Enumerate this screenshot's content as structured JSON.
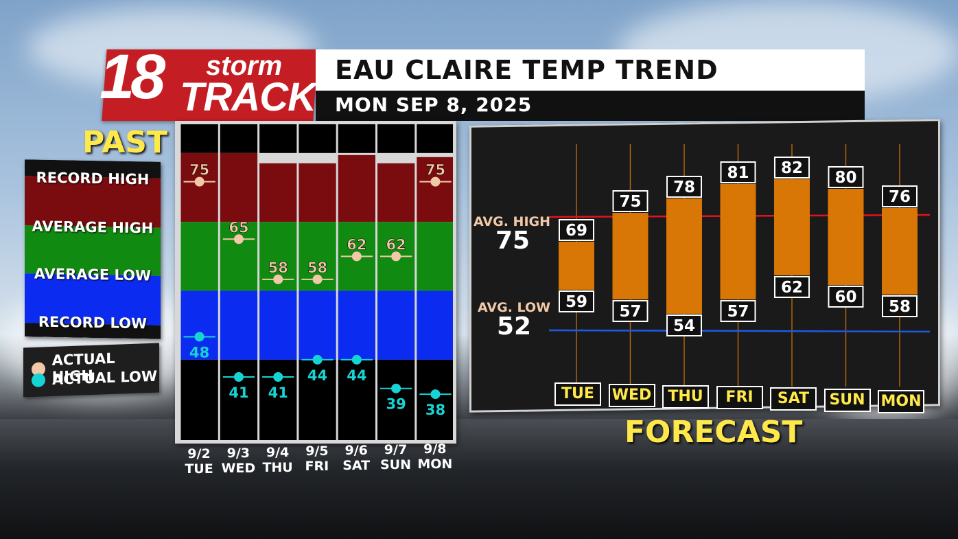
{
  "header": {
    "logo_number": "18",
    "logo_word1": "storm",
    "logo_word2": "TRACK",
    "title": "EAU CLAIRE TEMP TREND",
    "subtitle": "MON SEP 8, 2025"
  },
  "past": {
    "label": "PAST",
    "legend": {
      "record_high": "RECORD HIGH",
      "average_high": "AVERAGE HIGH",
      "average_low": "AVERAGE LOW",
      "record_low": "RECORD LOW",
      "actual_high": "ACTUAL HIGH",
      "actual_low": "ACTUAL LOW"
    },
    "colors": {
      "record_band": "#7a0c10",
      "normal_band": "#118a11",
      "low_band": "#0b2cf0",
      "empty": "#000000",
      "actual_high_dot": "#f2c9a8",
      "actual_low_dot": "#17d4d4"
    }
  },
  "forecast": {
    "label": "FORECAST",
    "avg_high_label": "AVG. HIGH",
    "avg_high_value": "75",
    "avg_low_label": "AVG. LOW",
    "avg_low_value": "52",
    "colors": {
      "bar": "#d97706",
      "avg_high_line": "#e0141e",
      "avg_low_line": "#1e5ae6"
    }
  },
  "chart_data": [
    {
      "type": "bar",
      "title": "PAST",
      "categories": [
        "9/2 TUE",
        "9/3 WED",
        "9/4 THU",
        "9/5 FRI",
        "9/6 SAT",
        "9/7 SUN",
        "9/8 MON"
      ],
      "date_labels": [
        "9/2",
        "9/3",
        "9/4",
        "9/5",
        "9/6",
        "9/7",
        "9/8"
      ],
      "day_labels": [
        "TUE",
        "WED",
        "THU",
        "FRI",
        "SAT",
        "SUN",
        "MON"
      ],
      "series": [
        {
          "name": "ACTUAL HIGH",
          "values": [
            75,
            65,
            58,
            58,
            62,
            62,
            75
          ]
        },
        {
          "name": "ACTUAL LOW",
          "values": [
            48,
            41,
            41,
            44,
            44,
            39,
            38
          ]
        }
      ]
    },
    {
      "type": "bar",
      "title": "FORECAST",
      "categories": [
        "TUE",
        "WED",
        "THU",
        "FRI",
        "SAT",
        "SUN",
        "MON"
      ],
      "series": [
        {
          "name": "High",
          "values": [
            69,
            75,
            78,
            81,
            82,
            80,
            76
          ]
        },
        {
          "name": "Low",
          "values": [
            59,
            57,
            54,
            57,
            62,
            60,
            58
          ]
        }
      ],
      "reference_lines": {
        "avg_high": 75,
        "avg_low": 52
      }
    }
  ]
}
